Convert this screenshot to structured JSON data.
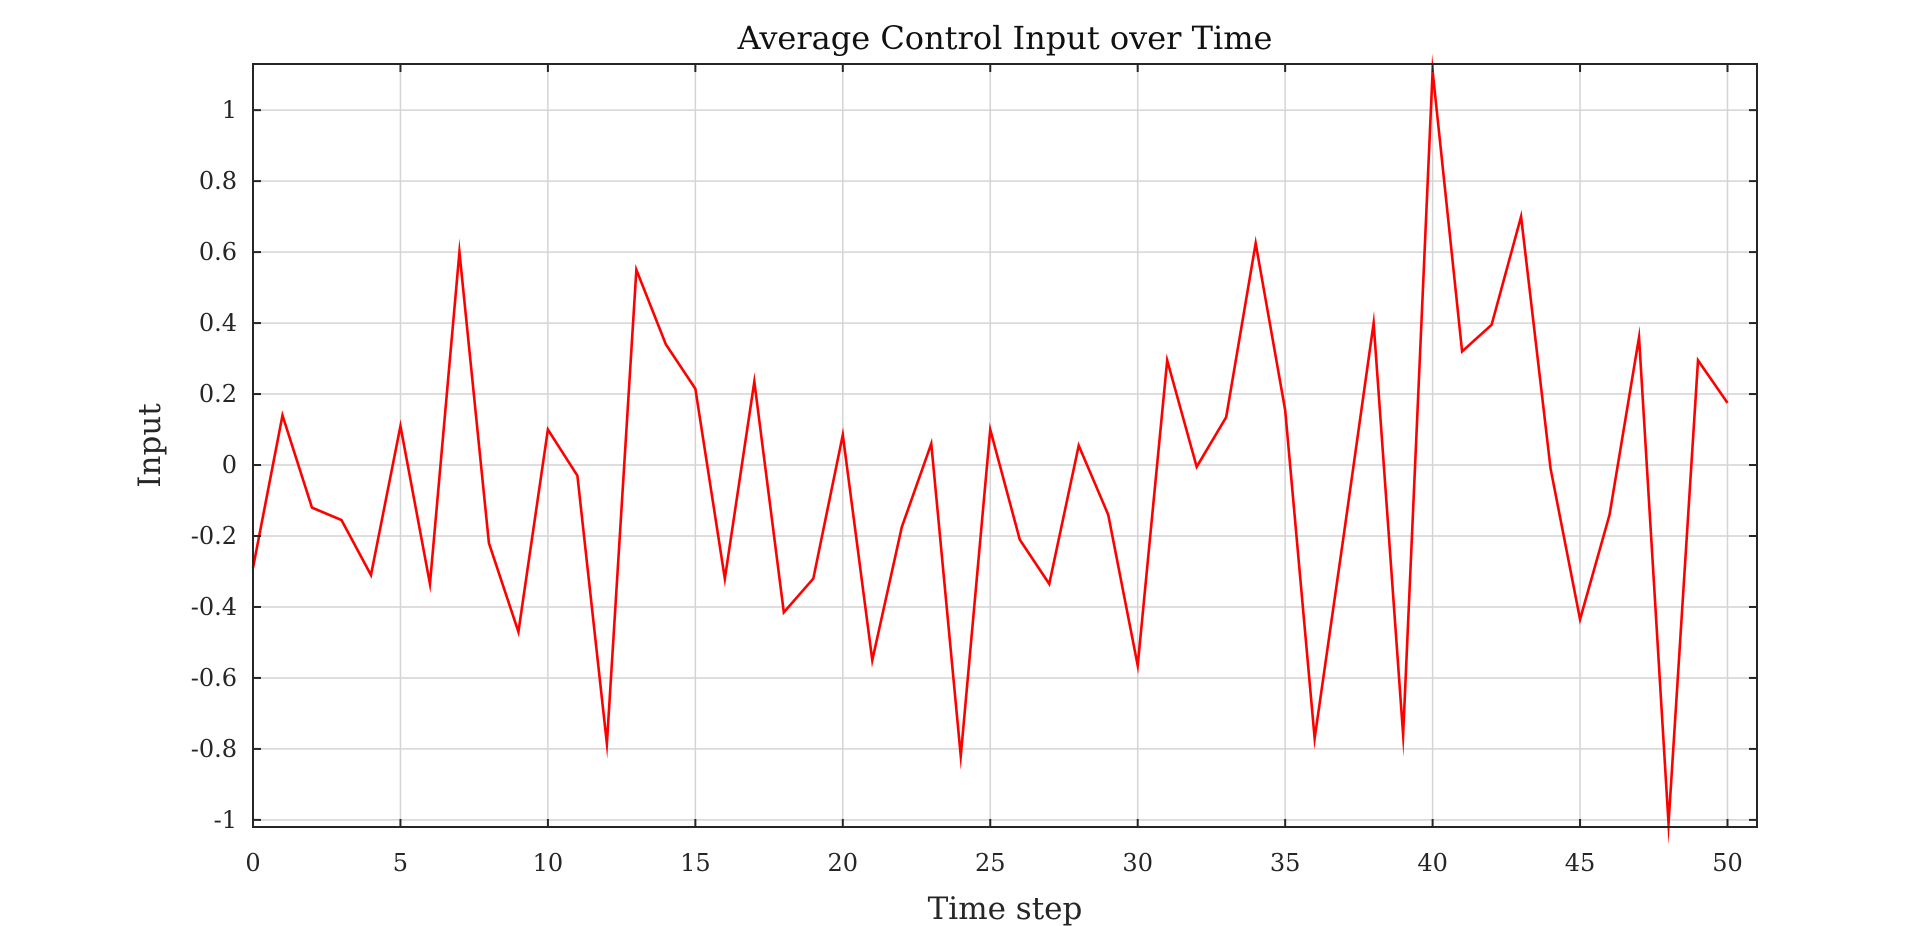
{
  "chart_data": {
    "type": "line",
    "title": "Average Control Input over Time",
    "xlabel": "Time step",
    "ylabel": "Input",
    "xlim": [
      0,
      51
    ],
    "ylim": [
      -1.02,
      1.13
    ],
    "xticks": [
      0,
      5,
      10,
      15,
      20,
      25,
      30,
      35,
      40,
      45,
      50
    ],
    "yticks": [
      -1,
      -0.8,
      -0.6,
      -0.4,
      -0.2,
      0,
      0.2,
      0.4,
      0.6,
      0.8,
      1
    ],
    "xtick_labels": [
      "0",
      "5",
      "10",
      "15",
      "20",
      "25",
      "30",
      "35",
      "40",
      "45",
      "50"
    ],
    "ytick_labels": [
      "-1",
      "-0.8",
      "-0.6",
      "-0.4",
      "-0.2",
      "0",
      "0.2",
      "0.4",
      "0.6",
      "0.8",
      "1"
    ],
    "grid": true,
    "box": true,
    "series": [
      {
        "color": "#ff0000",
        "x": [
          0,
          1,
          2,
          3,
          4,
          5,
          6,
          7,
          8,
          9,
          10,
          11,
          12,
          13,
          14,
          15,
          16,
          17,
          18,
          19,
          20,
          21,
          22,
          23,
          24,
          25,
          26,
          27,
          28,
          29,
          30,
          31,
          32,
          33,
          34,
          35,
          36,
          37,
          38,
          39,
          40,
          41,
          42,
          43,
          44,
          45,
          46,
          47,
          48,
          49,
          50
        ],
        "values": [
          -0.29,
          0.14,
          -0.12,
          -0.155,
          -0.31,
          0.11,
          -0.335,
          0.6,
          -0.22,
          -0.47,
          0.1,
          -0.03,
          -0.785,
          0.55,
          0.34,
          0.215,
          -0.32,
          0.235,
          -0.415,
          -0.32,
          0.085,
          -0.55,
          -0.175,
          0.06,
          -0.82,
          0.1,
          -0.21,
          -0.335,
          0.055,
          -0.14,
          -0.565,
          0.295,
          -0.005,
          0.135,
          0.625,
          0.155,
          -0.77,
          -0.19,
          0.4,
          -0.76,
          1.11,
          0.32,
          0.395,
          0.7,
          -0.01,
          -0.435,
          -0.14,
          0.36,
          -1.01,
          0.295,
          0.175
        ]
      }
    ]
  }
}
